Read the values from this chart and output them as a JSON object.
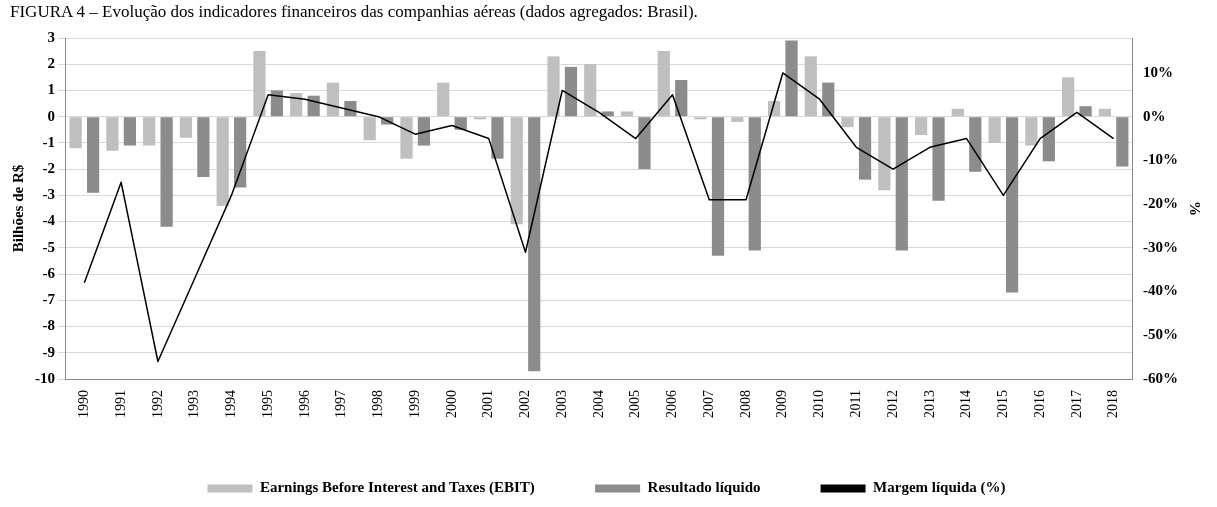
{
  "chart_data": {
    "type": "bar",
    "title": "FIGURA 4 – Evolução dos indicadores financeiros das companhias aéreas (dados agregados: Brasil).",
    "ylabel": "Bilhões de R$",
    "y2label": "%",
    "categories": [
      "1990",
      "1991",
      "1992",
      "1993",
      "1994",
      "1995",
      "1996",
      "1997",
      "1998",
      "1999",
      "2000",
      "2001",
      "2002",
      "2003",
      "2004",
      "2005",
      "2006",
      "2007",
      "2008",
      "2009",
      "2010",
      "2011",
      "2012",
      "2013",
      "2014",
      "2015",
      "2016",
      "2017",
      "2018"
    ],
    "series": [
      {
        "name": "Earnings Before Interest and Taxes (EBIT)",
        "color": "#bfbfbf",
        "values": [
          -1.2,
          -1.3,
          -1.1,
          -0.8,
          -3.4,
          2.5,
          0.9,
          1.3,
          -0.9,
          -1.6,
          1.3,
          -0.1,
          -4.1,
          2.3,
          2.0,
          0.2,
          2.5,
          -0.1,
          -0.2,
          0.6,
          2.3,
          -0.4,
          -2.8,
          -0.7,
          0.3,
          -1.0,
          -1.1,
          1.5,
          0.3
        ]
      },
      {
        "name": "Resultado líquido",
        "color": "#8c8c8c",
        "values": [
          -2.9,
          -1.1,
          -4.2,
          -2.3,
          -2.7,
          1.0,
          0.8,
          0.6,
          -0.3,
          -1.1,
          -0.5,
          -1.6,
          -9.7,
          1.9,
          0.2,
          -2.0,
          1.4,
          -5.3,
          -5.1,
          2.9,
          1.3,
          -2.4,
          -5.1,
          -3.2,
          -2.1,
          -6.7,
          -1.7,
          0.4,
          -1.9
        ]
      },
      {
        "name": "Margem líquida (%)",
        "type": "line",
        "axis": "y2",
        "color": "#000000",
        "values": [
          -38,
          -15,
          -56,
          -37,
          -18,
          5,
          4,
          2,
          0,
          -4,
          -2,
          -5,
          -31,
          6,
          1,
          -5,
          5,
          -19,
          -19,
          10,
          4,
          -7,
          -12,
          -7,
          -5,
          -18,
          -5,
          1,
          -5
        ]
      }
    ],
    "ylim": [
      -10,
      3
    ],
    "yticks": [
      -10,
      -9,
      -8,
      -7,
      -6,
      -5,
      -4,
      -3,
      -2,
      -1,
      0,
      1,
      2,
      3
    ],
    "y2lim": [
      -60,
      18
    ],
    "y2ticks": [
      {
        "value": -60,
        "label": "-60%"
      },
      {
        "value": -50,
        "label": "-50%"
      },
      {
        "value": -40,
        "label": "-40%"
      },
      {
        "value": -30,
        "label": "-30%"
      },
      {
        "value": -20,
        "label": "-20%"
      },
      {
        "value": -10,
        "label": "-10%"
      },
      {
        "value": 0,
        "label": "0%"
      },
      {
        "value": 10,
        "label": "10%"
      }
    ],
    "grid": "y",
    "legend": "bottom",
    "marker": "none",
    "line_style": "solid"
  }
}
